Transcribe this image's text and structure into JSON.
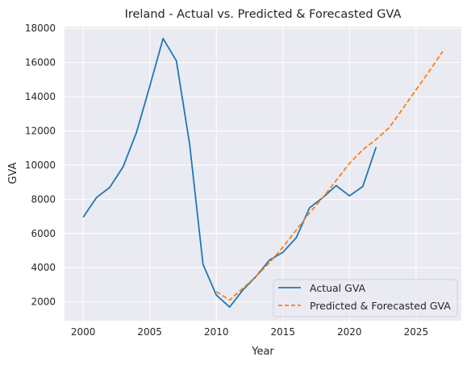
{
  "chart_data": {
    "type": "line",
    "title": "Ireland - Actual vs. Predicted & Forecasted GVA",
    "xlabel": "Year",
    "ylabel": "GVA",
    "xlim": [
      1998.6,
      2028.4
    ],
    "ylim": [
      900,
      18100
    ],
    "xticks": [
      2000,
      2005,
      2010,
      2015,
      2020,
      2025
    ],
    "yticks": [
      2000,
      4000,
      6000,
      8000,
      10000,
      12000,
      14000,
      16000,
      18000
    ],
    "grid": true,
    "legend_position": "lower-right",
    "series": [
      {
        "name": "Actual GVA",
        "color": "#1f77b4",
        "style": "solid",
        "x": [
          2000,
          2001,
          2002,
          2003,
          2004,
          2005,
          2006,
          2007,
          2008,
          2009,
          2010,
          2011,
          2012,
          2013,
          2014,
          2015,
          2016,
          2017,
          2018,
          2019,
          2020,
          2021,
          2022
        ],
        "values": [
          6950,
          8100,
          8700,
          9900,
          11900,
          14600,
          17400,
          16100,
          11200,
          4200,
          2400,
          1700,
          2700,
          3500,
          4450,
          4900,
          5750,
          7500,
          8100,
          8800,
          8200,
          8750,
          11050
        ]
      },
      {
        "name": "Predicted & Forecasted GVA",
        "color": "#ff7f0e",
        "style": "dashed",
        "x": [
          2010,
          2011,
          2012,
          2013,
          2014,
          2015,
          2016,
          2017,
          2018,
          2019,
          2020,
          2021,
          2022,
          2023,
          2024,
          2025,
          2026,
          2027
        ],
        "values": [
          2600,
          2100,
          2800,
          3500,
          4300,
          5200,
          6200,
          7200,
          8100,
          9100,
          10100,
          10900,
          11500,
          12200,
          13300,
          14400,
          15500,
          16650
        ]
      }
    ]
  }
}
